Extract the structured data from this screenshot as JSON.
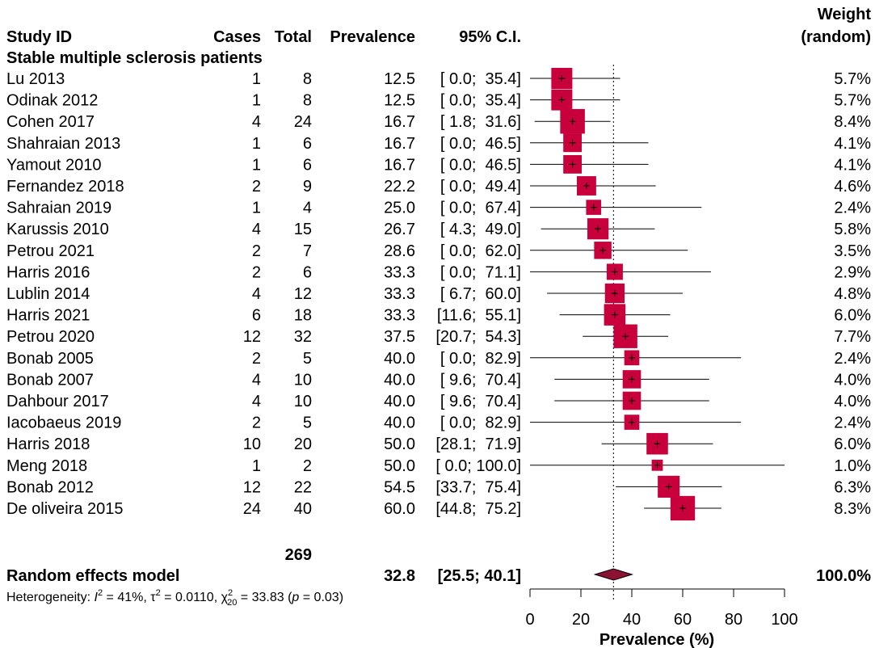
{
  "headers": {
    "study": "Study ID",
    "cases": "Cases",
    "total": "Total",
    "prevalence": "Prevalence",
    "ci": "95% C.I.",
    "weight_line1": "Weight",
    "weight_line2": "(random)"
  },
  "subgroup_label": "Stable multiple sclerosis patients",
  "summary": {
    "total_n": "269",
    "label": "Random effects model",
    "prevalence": "32.8",
    "ci": "[25.5; 40.1]",
    "weight": "100.0%",
    "heterogeneity": {
      "prefix": "Heterogeneity: ",
      "i2_sym": "I",
      "i2_val": " = 41%, ",
      "tau_sym": "τ",
      "tau_val": " = 0.0110, ",
      "chi_sym": "χ",
      "chi_sub": "20",
      "chi_val": " = 33.83 (",
      "p_sym": "p",
      "p_val": " = 0.03)",
      "sup": "2"
    }
  },
  "chart_data": {
    "type": "scatter",
    "xlabel": "Prevalence (%)",
    "xlim": [
      0,
      100
    ],
    "xticks": [
      0,
      20,
      40,
      60,
      80,
      100
    ],
    "reference_line": 32.8,
    "pooled": {
      "estimate": 32.8,
      "lower": 25.5,
      "upper": 40.1
    },
    "studies": [
      {
        "study": "Lu 2013",
        "cases": "1",
        "total": "8",
        "prev": "12.5",
        "ci": "[ 0.0;  35.4]",
        "weight": "5.7%",
        "est": 12.5,
        "lo": 0.0,
        "hi": 35.4,
        "w": 5.7
      },
      {
        "study": "Odinak 2012",
        "cases": "1",
        "total": "8",
        "prev": "12.5",
        "ci": "[ 0.0;  35.4]",
        "weight": "5.7%",
        "est": 12.5,
        "lo": 0.0,
        "hi": 35.4,
        "w": 5.7
      },
      {
        "study": "Cohen 2017",
        "cases": "4",
        "total": "24",
        "prev": "16.7",
        "ci": "[ 1.8;  31.6]",
        "weight": "8.4%",
        "est": 16.7,
        "lo": 1.8,
        "hi": 31.6,
        "w": 8.4
      },
      {
        "study": "Shahraian 2013",
        "cases": "1",
        "total": "6",
        "prev": "16.7",
        "ci": "[ 0.0;  46.5]",
        "weight": "4.1%",
        "est": 16.7,
        "lo": 0.0,
        "hi": 46.5,
        "w": 4.1
      },
      {
        "study": "Yamout 2010",
        "cases": "1",
        "total": "6",
        "prev": "16.7",
        "ci": "[ 0.0;  46.5]",
        "weight": "4.1%",
        "est": 16.7,
        "lo": 0.0,
        "hi": 46.5,
        "w": 4.1
      },
      {
        "study": "Fernandez 2018",
        "cases": "2",
        "total": "9",
        "prev": "22.2",
        "ci": "[ 0.0;  49.4]",
        "weight": "4.6%",
        "est": 22.2,
        "lo": 0.0,
        "hi": 49.4,
        "w": 4.6
      },
      {
        "study": "Sahraian 2019",
        "cases": "1",
        "total": "4",
        "prev": "25.0",
        "ci": "[ 0.0;  67.4]",
        "weight": "2.4%",
        "est": 25.0,
        "lo": 0.0,
        "hi": 67.4,
        "w": 2.4
      },
      {
        "study": "Karussis 2010",
        "cases": "4",
        "total": "15",
        "prev": "26.7",
        "ci": "[ 4.3;  49.0]",
        "weight": "5.8%",
        "est": 26.7,
        "lo": 4.3,
        "hi": 49.0,
        "w": 5.8
      },
      {
        "study": "Petrou 2021",
        "cases": "2",
        "total": "7",
        "prev": "28.6",
        "ci": "[ 0.0;  62.0]",
        "weight": "3.5%",
        "est": 28.6,
        "lo": 0.0,
        "hi": 62.0,
        "w": 3.5
      },
      {
        "study": "Harris 2016",
        "cases": "2",
        "total": "6",
        "prev": "33.3",
        "ci": "[ 0.0;  71.1]",
        "weight": "2.9%",
        "est": 33.3,
        "lo": 0.0,
        "hi": 71.1,
        "w": 2.9
      },
      {
        "study": "Lublin 2014",
        "cases": "4",
        "total": "12",
        "prev": "33.3",
        "ci": "[ 6.7;  60.0]",
        "weight": "4.8%",
        "est": 33.3,
        "lo": 6.7,
        "hi": 60.0,
        "w": 4.8
      },
      {
        "study": "Harris 2021",
        "cases": "6",
        "total": "18",
        "prev": "33.3",
        "ci": "[11.6;  55.1]",
        "weight": "6.0%",
        "est": 33.3,
        "lo": 11.6,
        "hi": 55.1,
        "w": 6.0
      },
      {
        "study": "Petrou 2020",
        "cases": "12",
        "total": "32",
        "prev": "37.5",
        "ci": "[20.7;  54.3]",
        "weight": "7.7%",
        "est": 37.5,
        "lo": 20.7,
        "hi": 54.3,
        "w": 7.7
      },
      {
        "study": "Bonab 2005",
        "cases": "2",
        "total": "5",
        "prev": "40.0",
        "ci": "[ 0.0;  82.9]",
        "weight": "2.4%",
        "est": 40.0,
        "lo": 0.0,
        "hi": 82.9,
        "w": 2.4
      },
      {
        "study": "Bonab 2007",
        "cases": "4",
        "total": "10",
        "prev": "40.0",
        "ci": "[ 9.6;  70.4]",
        "weight": "4.0%",
        "est": 40.0,
        "lo": 9.6,
        "hi": 70.4,
        "w": 4.0
      },
      {
        "study": "Dahbour 2017",
        "cases": "4",
        "total": "10",
        "prev": "40.0",
        "ci": "[ 9.6;  70.4]",
        "weight": "4.0%",
        "est": 40.0,
        "lo": 9.6,
        "hi": 70.4,
        "w": 4.0
      },
      {
        "study": "Iacobaeus 2019",
        "cases": "2",
        "total": "5",
        "prev": "40.0",
        "ci": "[ 0.0;  82.9]",
        "weight": "2.4%",
        "est": 40.0,
        "lo": 0.0,
        "hi": 82.9,
        "w": 2.4
      },
      {
        "study": "Harris 2018",
        "cases": "10",
        "total": "20",
        "prev": "50.0",
        "ci": "[28.1;  71.9]",
        "weight": "6.0%",
        "est": 50.0,
        "lo": 28.1,
        "hi": 71.9,
        "w": 6.0
      },
      {
        "study": "Meng 2018",
        "cases": "1",
        "total": "2",
        "prev": "50.0",
        "ci": "[ 0.0; 100.0]",
        "weight": "1.0%",
        "est": 50.0,
        "lo": 0.0,
        "hi": 100.0,
        "w": 1.0
      },
      {
        "study": "Bonab 2012",
        "cases": "12",
        "total": "22",
        "prev": "54.5",
        "ci": "[33.7;  75.4]",
        "weight": "6.3%",
        "est": 54.5,
        "lo": 33.7,
        "hi": 75.4,
        "w": 6.3
      },
      {
        "study": "De oliveira 2015",
        "cases": "24",
        "total": "40",
        "prev": "60.0",
        "ci": "[44.8;  75.2]",
        "weight": "8.3%",
        "est": 60.0,
        "lo": 44.8,
        "hi": 75.2,
        "w": 8.3
      }
    ],
    "colors": {
      "box": "#c8003c",
      "diamond": "#8c1234"
    }
  }
}
